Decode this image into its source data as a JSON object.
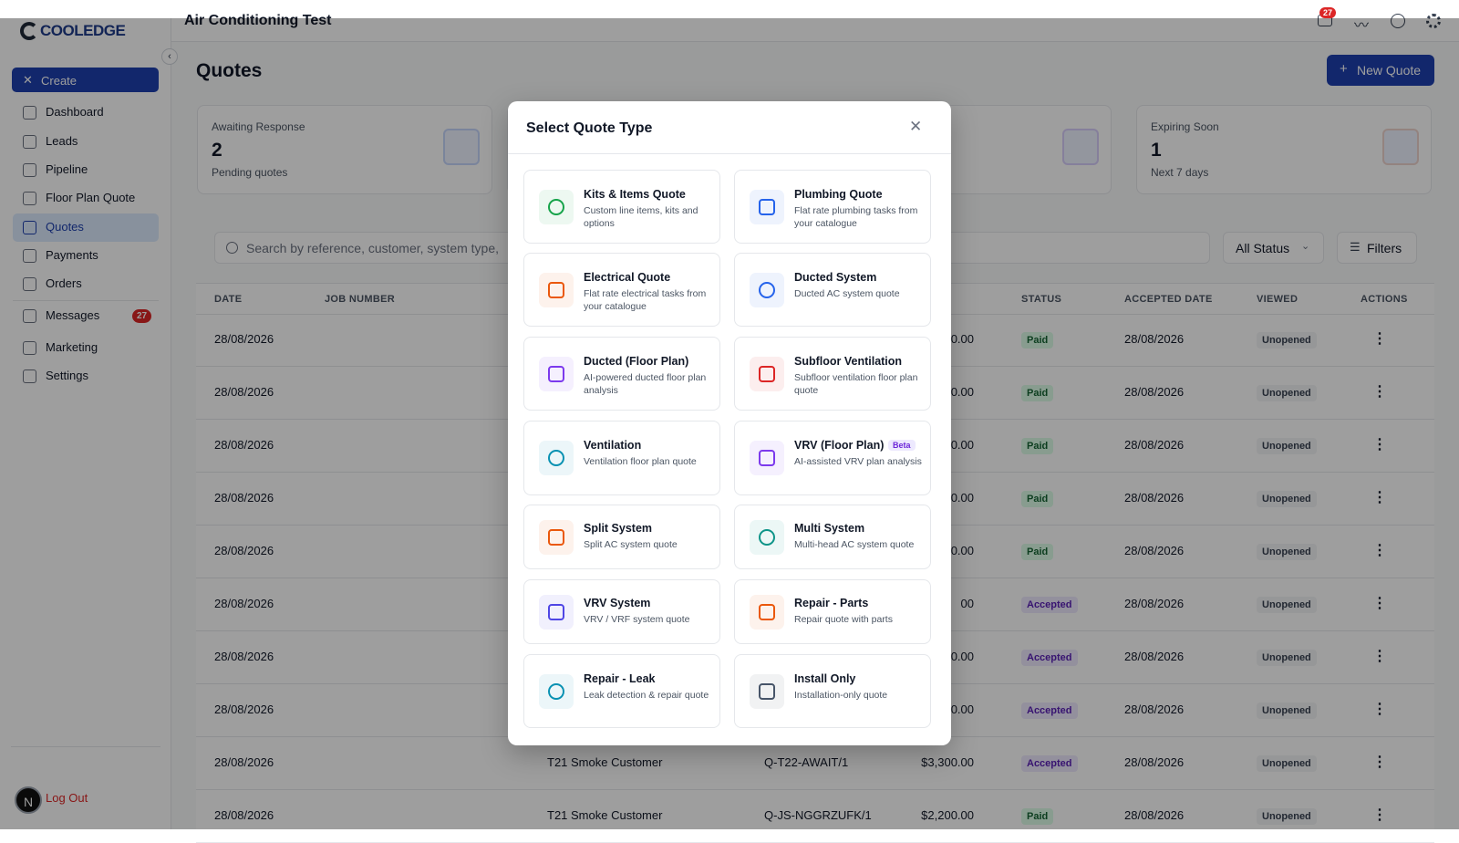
{
  "brand": "COOLEDGE",
  "header": {
    "title": "Air Conditioning Test",
    "notifications": "27"
  },
  "sidebar": {
    "create": "Create",
    "nav": [
      "Dashboard",
      "Leads",
      "Pipeline",
      "Floor Plan Quote",
      "Quotes",
      "Payments",
      "Orders",
      "Messages",
      "Marketing",
      "Settings"
    ],
    "active": 4,
    "messages_badge": "27",
    "avatar": "N",
    "logout": "Log Out"
  },
  "page": {
    "title": "Quotes",
    "new_button": "New Quote"
  },
  "stats": [
    {
      "label": "Awaiting Response",
      "value": "2",
      "note": "Pending quotes"
    },
    {
      "label": "Expiring Soon",
      "value": "1",
      "note": "Next 7 days"
    }
  ],
  "toolbar": {
    "search": "Search by reference, customer, system type,",
    "status": "All Status",
    "filters": "Filters"
  },
  "table": {
    "headers": {
      "date": "DATE",
      "job": "JOB NUMBER",
      "status": "STATUS",
      "accepted": "ACCEPTED DATE",
      "viewed": "VIEWED",
      "actions": "ACTIONS"
    },
    "rows": [
      {
        "date": "28/08/2026",
        "amount": "0.00",
        "status": "Paid",
        "accepted": "28/08/2026",
        "viewed": "Unopened"
      },
      {
        "date": "28/08/2026",
        "amount": "0.00",
        "status": "Paid",
        "accepted": "28/08/2026",
        "viewed": "Unopened"
      },
      {
        "date": "28/08/2026",
        "amount": "0.00",
        "status": "Paid",
        "accepted": "28/08/2026",
        "viewed": "Unopened"
      },
      {
        "date": "28/08/2026",
        "amount": "0.00",
        "status": "Paid",
        "accepted": "28/08/2026",
        "viewed": "Unopened"
      },
      {
        "date": "28/08/2026",
        "amount": "0.00",
        "status": "Paid",
        "accepted": "28/08/2026",
        "viewed": "Unopened"
      },
      {
        "date": "28/08/2026",
        "amount": "00",
        "status": "Accepted",
        "accepted": "28/08/2026",
        "viewed": "Unopened"
      },
      {
        "date": "28/08/2026",
        "amount": "0.00",
        "status": "Accepted",
        "accepted": "28/08/2026",
        "viewed": "Unopened"
      },
      {
        "date": "28/08/2026",
        "amount": "0.00",
        "status": "Accepted",
        "accepted": "28/08/2026",
        "viewed": "Unopened"
      },
      {
        "date": "28/08/2026",
        "customer": "T21 Smoke Customer",
        "ref": "Q-T22-AWAIT/1",
        "amount": "$3,300.00",
        "status": "Accepted",
        "accepted": "28/08/2026",
        "viewed": "Unopened"
      },
      {
        "date": "28/08/2026",
        "customer": "T21 Smoke Customer",
        "ref": "Q-JS-NGGRZUFK/1",
        "amount": "$2,200.00",
        "status": "Paid",
        "accepted": "28/08/2026",
        "viewed": "Unopened"
      }
    ]
  },
  "modal": {
    "title": "Select Quote Type",
    "options": [
      {
        "title": "Kits & Items Quote",
        "description": "Custom line items, kits and options",
        "color": "#16a34a"
      },
      {
        "title": "Plumbing Quote",
        "description": "Flat rate plumbing tasks from your catalogue",
        "color": "#2563eb"
      },
      {
        "title": "Electrical Quote",
        "description": "Flat rate electrical tasks from your catalogue",
        "color": "#ea580c"
      },
      {
        "title": "Ducted System",
        "description": "Ducted AC system quote",
        "color": "#2563eb"
      },
      {
        "title": "Ducted (Floor Plan)",
        "description": "AI-powered ducted floor plan analysis",
        "color": "#7c3aed"
      },
      {
        "title": "Subfloor Ventilation",
        "description": "Subfloor ventilation floor plan quote",
        "color": "#dc2626"
      },
      {
        "title": "Ventilation",
        "description": "Ventilation floor plan quote",
        "color": "#0891b2"
      },
      {
        "title": "VRV (Floor Plan)",
        "badge": "Beta",
        "description": "AI-assisted VRV plan analysis",
        "color": "#7c3aed"
      },
      {
        "title": "Split System",
        "description": "Split AC system quote",
        "color": "#ea580c"
      },
      {
        "title": "Multi System",
        "description": "Multi-head AC system quote",
        "color": "#0d9488"
      },
      {
        "title": "VRV System",
        "description": "VRV / VRF system quote",
        "color": "#4f46e5"
      },
      {
        "title": "Repair - Parts",
        "description": "Repair quote with parts",
        "color": "#ea580c"
      },
      {
        "title": "Repair - Leak",
        "description": "Leak detection & repair quote",
        "color": "#0891b2"
      },
      {
        "title": "Install Only",
        "description": "Installation-only quote",
        "color": "#475569"
      }
    ]
  }
}
